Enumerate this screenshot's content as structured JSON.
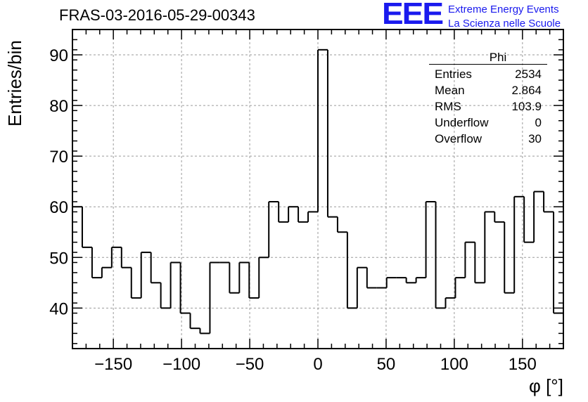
{
  "header": {
    "run_title": "FRAS-03-2016-05-29-00343",
    "logo_letters": "EEE",
    "logo_line1": "Extreme Energy Events",
    "logo_line2": "La Scienza nelle Scuole"
  },
  "stats_box": {
    "name": "Phi",
    "rows": [
      {
        "label": "Entries",
        "value": "2534"
      },
      {
        "label": "Mean",
        "value": "2.864"
      },
      {
        "label": "RMS",
        "value": "103.9"
      },
      {
        "label": "Underflow",
        "value": "0"
      },
      {
        "label": "Overflow",
        "value": "30"
      }
    ]
  },
  "chart_data": {
    "type": "bar",
    "style": "step-histogram",
    "title": "FRAS-03-2016-05-29-00343",
    "xlabel": "φ [°]",
    "ylabel": "Entries/bin",
    "xlim": [
      -180,
      180
    ],
    "ylim": [
      32,
      95
    ],
    "bin_width": 7.2,
    "x_ticks": [
      -150,
      -100,
      -50,
      0,
      50,
      100,
      150
    ],
    "x_tick_labels": [
      "−150",
      "−100",
      "−50",
      "0",
      "50",
      "100",
      "150"
    ],
    "y_ticks": [
      40,
      50,
      60,
      70,
      80,
      90
    ],
    "y_tick_labels": [
      "40",
      "50",
      "60",
      "70",
      "80",
      "90"
    ],
    "grid": true,
    "values": [
      60,
      52,
      46,
      48,
      52,
      48,
      42,
      51,
      45,
      40,
      49,
      39,
      36,
      35,
      49,
      49,
      43,
      49,
      42,
      50,
      61,
      57,
      60,
      57,
      59,
      91,
      58,
      55,
      40,
      48,
      44,
      44,
      46,
      46,
      45,
      46,
      61,
      40,
      42,
      46,
      53,
      45,
      59,
      57,
      43,
      62,
      53,
      63,
      59,
      39
    ],
    "line_color": "#000000",
    "grid_color": "#9a9a9a"
  }
}
